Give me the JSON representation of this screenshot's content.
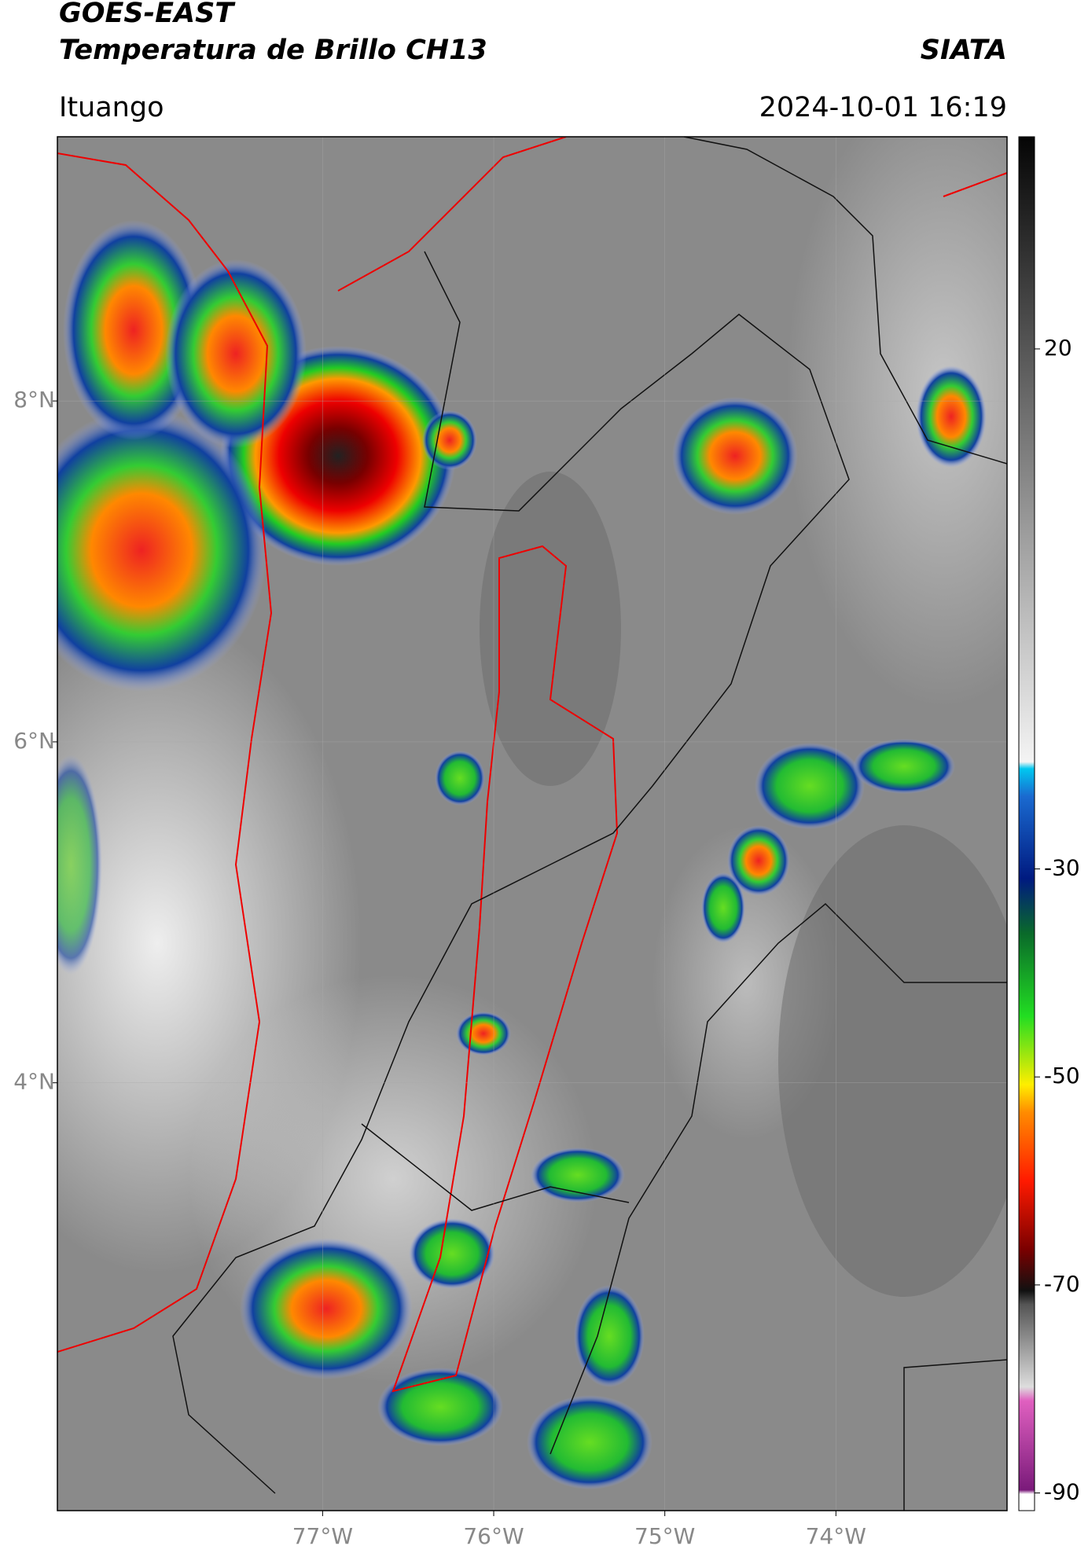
{
  "header": {
    "title": "GOES-EAST",
    "subtitle": "Temperatura de Brillo CH13",
    "source": "SIATA",
    "location": "Ituango",
    "datetime": "2024-10-01 16:19"
  },
  "map": {
    "lonlim": [
      -78.55,
      -73.0
    ],
    "latlim": [
      1.49,
      9.55
    ],
    "xticks": [
      {
        "value": -77,
        "label": "77°W"
      },
      {
        "value": -76,
        "label": "76°W"
      },
      {
        "value": -75,
        "label": "75°W"
      },
      {
        "value": -74,
        "label": "74°W"
      }
    ],
    "yticks": [
      {
        "value": 8,
        "label": "8°N"
      },
      {
        "value": 6,
        "label": "6°N"
      },
      {
        "value": 4,
        "label": "4°N"
      }
    ],
    "grid": true
  },
  "colorbar": {
    "lim": [
      -91.7,
      40.4
    ],
    "ticks": [
      20,
      -30,
      -50,
      -70,
      -90
    ]
  }
}
